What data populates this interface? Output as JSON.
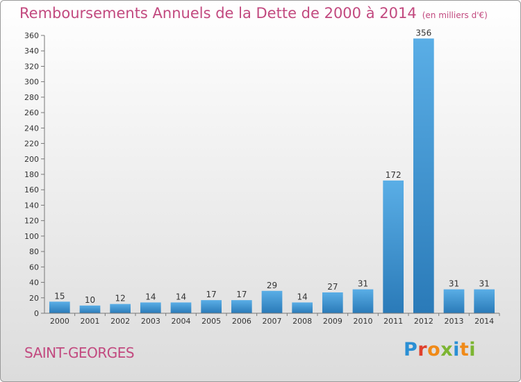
{
  "header": {
    "title": "Remboursements Annuels de la Dette de 2000 à 2014",
    "unit": "(en milliers d'€)"
  },
  "footer": {
    "town": "SAINT-GEORGES",
    "logo": [
      "P",
      "r",
      "o",
      "x",
      "i",
      "t",
      "i"
    ]
  },
  "colors": {
    "title": "#c2497f",
    "bar_light": "#5aaee6",
    "bar_dark": "#2a7ab8",
    "logo_blue": "#2a8fd4",
    "logo_red": "#e0402c",
    "logo_orange": "#f08a18",
    "logo_green": "#7cb532"
  },
  "chart_data": {
    "type": "bar",
    "title": "Remboursements Annuels de la Dette de 2000 à 2014",
    "subtitle": "(en milliers d'€)",
    "categories": [
      "2000",
      "2001",
      "2002",
      "2003",
      "2004",
      "2005",
      "2006",
      "2007",
      "2008",
      "2009",
      "2010",
      "2011",
      "2012",
      "2013",
      "2014"
    ],
    "values": [
      15,
      10,
      12,
      14,
      14,
      17,
      17,
      29,
      14,
      27,
      31,
      172,
      356,
      31,
      31
    ],
    "data_labels": [
      "15",
      "10",
      "12",
      "14",
      "14",
      "17",
      "17",
      "29",
      "14",
      "27",
      "31",
      "172",
      "356",
      "31",
      "31"
    ],
    "ylim": [
      0,
      360
    ],
    "yticks": [
      0,
      20,
      40,
      60,
      80,
      100,
      120,
      140,
      160,
      180,
      200,
      220,
      240,
      260,
      280,
      300,
      320,
      340,
      360
    ],
    "grid": false,
    "legend": "none"
  }
}
